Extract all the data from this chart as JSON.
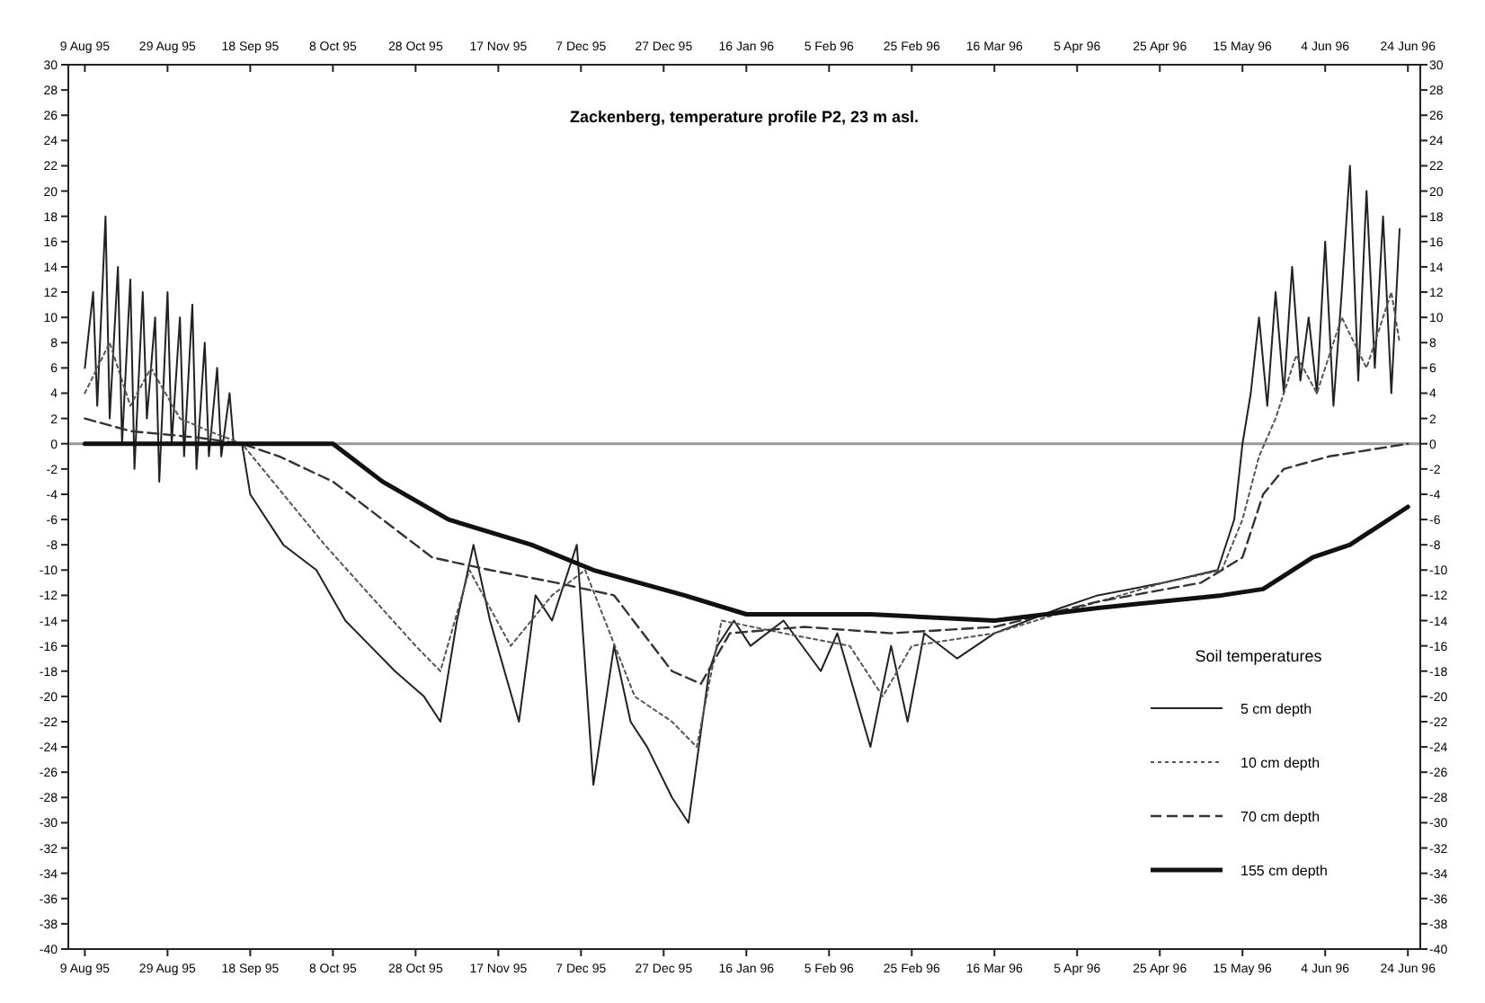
{
  "chart_data": {
    "type": "line",
    "title": "Zackenberg, temperature profile P2, 23 m asl.",
    "legend_title": "Soil temperatures",
    "legend": "bottom right",
    "grid": false,
    "xlim": [
      "1995-08-05",
      "1996-06-27"
    ],
    "xticks": [
      {
        "value": "1995-08-09",
        "label": "9 Aug 95"
      },
      {
        "value": "1995-08-29",
        "label": "29 Aug 95"
      },
      {
        "value": "1995-09-18",
        "label": "18 Sep 95"
      },
      {
        "value": "1995-10-08",
        "label": "8 Oct 95"
      },
      {
        "value": "1995-10-28",
        "label": "28 Oct 95"
      },
      {
        "value": "1995-11-17",
        "label": "17 Nov 95"
      },
      {
        "value": "1995-12-07",
        "label": "7 Dec 95"
      },
      {
        "value": "1995-12-27",
        "label": "27 Dec 95"
      },
      {
        "value": "1996-01-16",
        "label": "16 Jan 96"
      },
      {
        "value": "1996-02-05",
        "label": "5 Feb 96"
      },
      {
        "value": "1996-02-25",
        "label": "25 Feb 96"
      },
      {
        "value": "1996-03-16",
        "label": "16 Mar 96"
      },
      {
        "value": "1996-04-05",
        "label": "5 Apr 96"
      },
      {
        "value": "1996-04-25",
        "label": "25 Apr 96"
      },
      {
        "value": "1996-05-15",
        "label": "15 May 96"
      },
      {
        "value": "1996-06-04",
        "label": "4 Jun 96"
      },
      {
        "value": "1996-06-24",
        "label": "24 Jun 96"
      }
    ],
    "x2lim": [
      "1995-08-05",
      "1996-06-27"
    ],
    "x2ticks": [
      {
        "value": "1995-08-09",
        "label": "9 Aug 95"
      },
      {
        "value": "1995-08-29",
        "label": "29 Aug 95"
      },
      {
        "value": "1995-09-18",
        "label": "18 Sep 95"
      },
      {
        "value": "1995-10-08",
        "label": "8 Oct 95"
      },
      {
        "value": "1995-10-28",
        "label": "28 Oct 95"
      },
      {
        "value": "1995-11-17",
        "label": "17 Nov 95"
      },
      {
        "value": "1995-12-07",
        "label": "7 Dec 95"
      },
      {
        "value": "1995-12-27",
        "label": "27 Dec 95"
      },
      {
        "value": "1996-01-16",
        "label": "16 Jan 96"
      },
      {
        "value": "1996-02-05",
        "label": "5 Feb 96"
      },
      {
        "value": "1996-02-25",
        "label": "25 Feb 96"
      },
      {
        "value": "1996-03-16",
        "label": "16 Mar 96"
      },
      {
        "value": "1996-04-05",
        "label": "5 Apr 96"
      },
      {
        "value": "1996-04-25",
        "label": "25 Apr 96"
      },
      {
        "value": "1996-05-15",
        "label": "15 May 96"
      },
      {
        "value": "1996-06-04",
        "label": "4 Jun 96"
      },
      {
        "value": "1996-06-24",
        "label": "24 Jun 96"
      }
    ],
    "ylim": [
      -40,
      30
    ],
    "yticks": [
      -40,
      -38,
      -36,
      -34,
      -32,
      -30,
      -28,
      -26,
      -24,
      -22,
      -20,
      -18,
      -16,
      -14,
      -12,
      -10,
      -8,
      -6,
      -4,
      -2,
      0,
      2,
      4,
      6,
      8,
      10,
      12,
      14,
      16,
      18,
      20,
      22,
      24,
      26,
      28,
      30
    ],
    "y2lim": [
      -40,
      30
    ],
    "y2ticks": [
      -40,
      -38,
      -36,
      -34,
      -32,
      -30,
      -28,
      -26,
      -24,
      -22,
      -20,
      -18,
      -16,
      -14,
      -12,
      -10,
      -8,
      -6,
      -4,
      -2,
      0,
      2,
      4,
      6,
      8,
      10,
      12,
      14,
      16,
      18,
      20,
      22,
      24,
      26,
      28,
      30
    ],
    "ref_lines": [
      {
        "axis": "y",
        "value": 0,
        "color": "#999999"
      }
    ],
    "series": [
      {
        "name": "5 cm depth",
        "color": "#222222",
        "line_style": "solid",
        "x": [
          "1995-08-09",
          "1995-08-11",
          "1995-08-12",
          "1995-08-14",
          "1995-08-15",
          "1995-08-17",
          "1995-08-18",
          "1995-08-20",
          "1995-08-21",
          "1995-08-23",
          "1995-08-24",
          "1995-08-26",
          "1995-08-27",
          "1995-08-29",
          "1995-08-30",
          "1995-09-01",
          "1995-09-02",
          "1995-09-04",
          "1995-09-05",
          "1995-09-07",
          "1995-09-08",
          "1995-09-10",
          "1995-09-11",
          "1995-09-13",
          "1995-09-14",
          "1995-09-16",
          "1995-09-18",
          "1995-09-26",
          "1995-10-04",
          "1995-10-11",
          "1995-10-17",
          "1995-10-23",
          "1995-10-30",
          "1995-11-03",
          "1995-11-07",
          "1995-11-11",
          "1995-11-15",
          "1995-11-22",
          "1995-11-26",
          "1995-11-30",
          "1995-12-06",
          "1995-12-10",
          "1995-12-15",
          "1995-12-19",
          "1995-12-23",
          "1995-12-29",
          "1996-01-02",
          "1996-01-07",
          "1996-01-09",
          "1996-01-13",
          "1996-01-17",
          "1996-01-25",
          "1996-02-03",
          "1996-02-07",
          "1996-02-15",
          "1996-02-20",
          "1996-02-24",
          "1996-02-28",
          "1996-03-07",
          "1996-03-16",
          "1996-04-01",
          "1996-04-10",
          "1996-04-26",
          "1996-05-09",
          "1996-05-13",
          "1996-05-15",
          "1996-05-17",
          "1996-05-19",
          "1996-05-21",
          "1996-05-23",
          "1996-05-25",
          "1996-05-27",
          "1996-05-29",
          "1996-05-31",
          "1996-06-02",
          "1996-06-04",
          "1996-06-06",
          "1996-06-08",
          "1996-06-10",
          "1996-06-12",
          "1996-06-14",
          "1996-06-16",
          "1996-06-18",
          "1996-06-20",
          "1996-06-22"
        ],
        "values": [
          6,
          12,
          3,
          18,
          2,
          14,
          0,
          13,
          -2,
          12,
          2,
          10,
          -3,
          12,
          0,
          10,
          -1,
          11,
          -2,
          8,
          -1,
          6,
          -1,
          4,
          0,
          0,
          -4,
          -8,
          -10,
          -14,
          -16,
          -18,
          -20,
          -22,
          -14,
          -8,
          -14,
          -22,
          -12,
          -14,
          -8,
          -27,
          -16,
          -22,
          -24,
          -28,
          -30,
          -18,
          -16,
          -14,
          -16,
          -14,
          -18,
          -15,
          -24,
          -16,
          -22,
          -15,
          -17,
          -15,
          -13,
          -12,
          -11,
          -10,
          -6,
          0,
          4,
          10,
          3,
          12,
          4,
          14,
          5,
          10,
          4,
          16,
          3,
          12,
          22,
          5,
          20,
          6,
          18,
          4,
          17
        ]
      },
      {
        "name": "10 cm depth",
        "color": "#555555",
        "line_style": "dotted",
        "x": [
          "1995-08-09",
          "1995-08-15",
          "1995-08-20",
          "1995-08-25",
          "1995-09-01",
          "1995-09-08",
          "1995-09-16",
          "1995-09-26",
          "1995-10-06",
          "1995-10-17",
          "1995-10-28",
          "1995-11-03",
          "1995-11-10",
          "1995-11-20",
          "1995-11-30",
          "1995-12-08",
          "1995-12-20",
          "1995-12-29",
          "1996-01-04",
          "1996-01-10",
          "1996-01-25",
          "1996-02-10",
          "1996-02-18",
          "1996-02-25",
          "1996-03-16",
          "1996-04-05",
          "1996-04-26",
          "1996-05-10",
          "1996-05-15",
          "1996-05-19",
          "1996-05-23",
          "1996-05-28",
          "1996-06-02",
          "1996-06-08",
          "1996-06-14",
          "1996-06-20",
          "1996-06-22"
        ],
        "values": [
          4,
          8,
          3,
          6,
          2,
          1,
          0,
          -4,
          -8,
          -12,
          -16,
          -18,
          -10,
          -16,
          -12,
          -10,
          -20,
          -22,
          -24,
          -14,
          -15,
          -16,
          -20,
          -16,
          -15,
          -13,
          -11,
          -10,
          -6,
          -1,
          2,
          7,
          4,
          10,
          6,
          12,
          8
        ]
      },
      {
        "name": "70 cm depth",
        "color": "#333333",
        "line_style": "dashed",
        "x": [
          "1995-08-09",
          "1995-08-20",
          "1995-09-05",
          "1995-09-16",
          "1995-09-25",
          "1995-10-08",
          "1995-10-20",
          "1995-11-01",
          "1995-11-15",
          "1995-12-01",
          "1995-12-15",
          "1995-12-29",
          "1996-01-05",
          "1996-01-12",
          "1996-01-30",
          "1996-02-20",
          "1996-03-16",
          "1996-04-10",
          "1996-05-05",
          "1996-05-15",
          "1996-05-20",
          "1996-05-25",
          "1996-06-05",
          "1996-06-24"
        ],
        "values": [
          2,
          1,
          0.5,
          0,
          -1,
          -3,
          -6,
          -9,
          -10,
          -11,
          -12,
          -18,
          -19,
          -15,
          -14.5,
          -15,
          -14.5,
          -12.5,
          -11,
          -9,
          -4,
          -2,
          -1,
          0
        ]
      },
      {
        "name": "155 cm depth",
        "color": "#111111",
        "line_style": "solid",
        "x": [
          "1995-08-09",
          "1995-10-08",
          "1995-10-20",
          "1995-11-05",
          "1995-11-25",
          "1995-12-10",
          "1996-01-01",
          "1996-01-16",
          "1996-02-15",
          "1996-03-16",
          "1996-04-10",
          "1996-05-10",
          "1996-05-20",
          "1996-06-01",
          "1996-06-10",
          "1996-06-24"
        ],
        "values": [
          0,
          0,
          -3,
          -6,
          -8,
          -10,
          -12,
          -13.5,
          -13.5,
          -14,
          -13,
          -12,
          -11.5,
          -9,
          -8,
          -5
        ]
      }
    ]
  }
}
